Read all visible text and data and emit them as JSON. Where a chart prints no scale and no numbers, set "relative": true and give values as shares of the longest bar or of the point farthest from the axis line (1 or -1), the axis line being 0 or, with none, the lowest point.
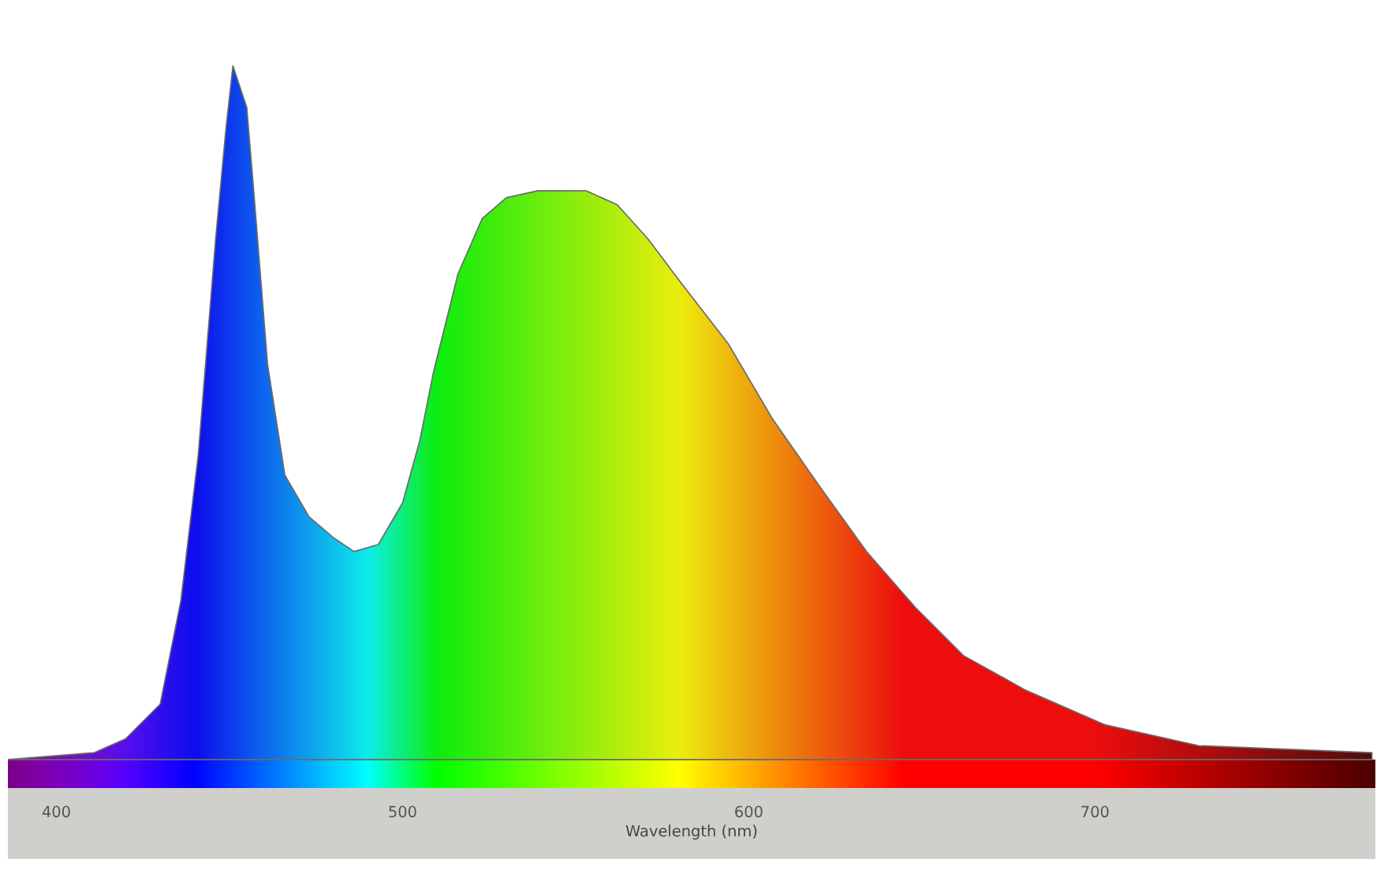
{
  "chart_data": {
    "type": "area",
    "relative": true,
    "color": "#6a6a6a",
    "xlabel": "Wavelength (nm)",
    "xlim": [
      386,
      781
    ],
    "xticks": [
      400,
      500,
      600,
      700
    ],
    "x": [
      386,
      411,
      420,
      430,
      436,
      441,
      446,
      449,
      451,
      455,
      457,
      461,
      466,
      473,
      480,
      486,
      493,
      500,
      505,
      509,
      516,
      523,
      530,
      539,
      553,
      562,
      571,
      580,
      594,
      607,
      621,
      634,
      648,
      662,
      680,
      703,
      730,
      780
    ],
    "values": [
      0,
      0.01,
      0.03,
      0.08,
      0.23,
      0.44,
      0.75,
      0.91,
      1.0,
      0.94,
      0.82,
      0.57,
      0.41,
      0.35,
      0.32,
      0.3,
      0.31,
      0.37,
      0.46,
      0.56,
      0.7,
      0.78,
      0.81,
      0.82,
      0.82,
      0.8,
      0.75,
      0.69,
      0.6,
      0.49,
      0.39,
      0.3,
      0.22,
      0.15,
      0.1,
      0.05,
      0.02,
      0.01
    ]
  }
}
